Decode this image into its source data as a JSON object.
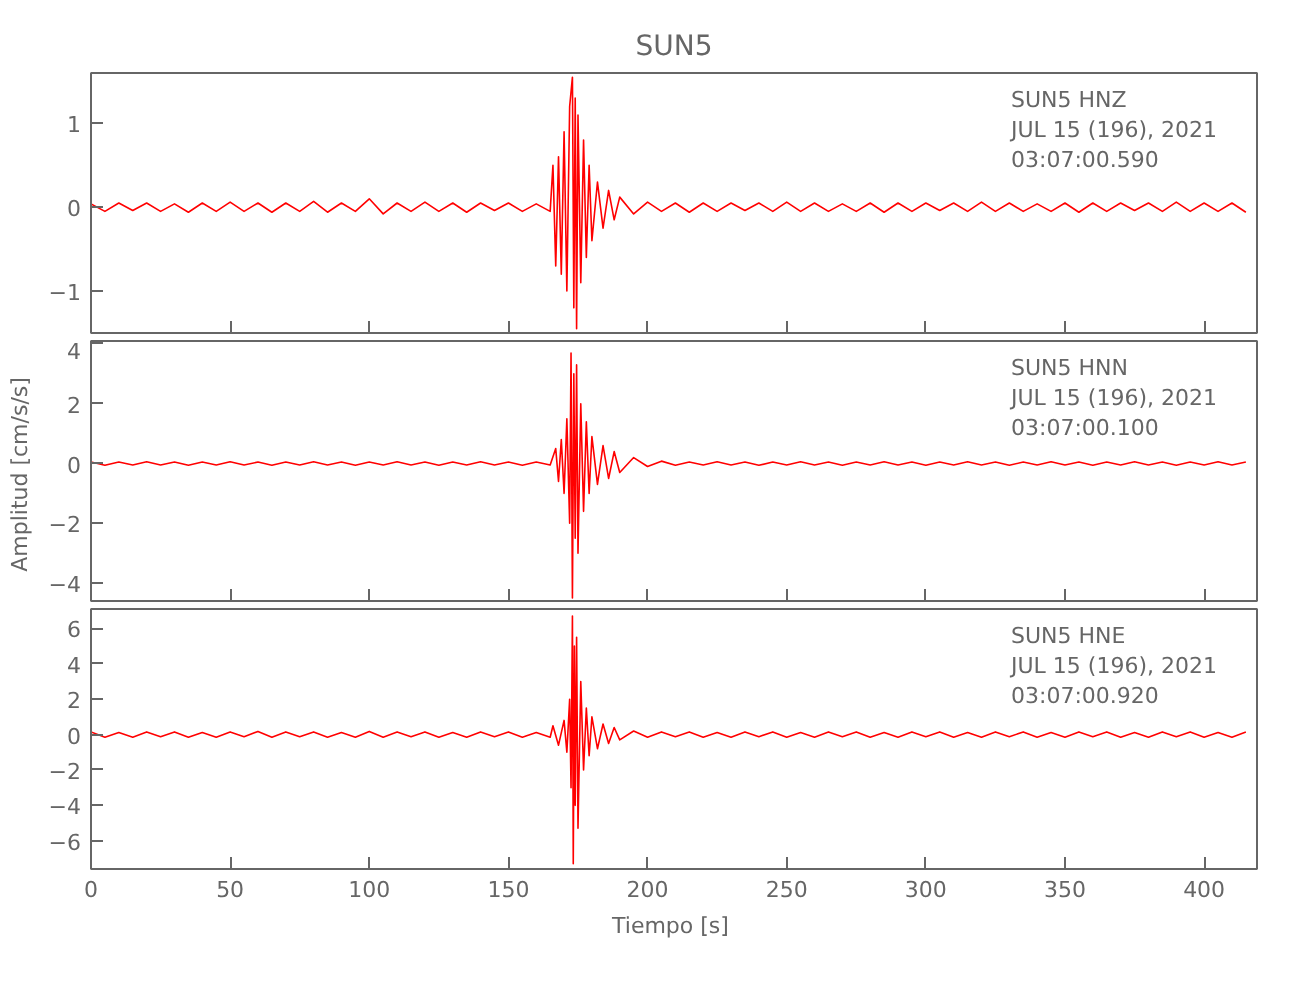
{
  "chart_data": [
    {
      "type": "line",
      "title": "SUN5",
      "annotations": [
        "SUN5   HNZ",
        "JUL 15 (196), 2021",
        "03:07:00.590"
      ],
      "xlim": [
        0,
        419
      ],
      "xticks": [
        0,
        50,
        100,
        150,
        200,
        250,
        300,
        350,
        400
      ],
      "ylim": [
        -1.5,
        1.6
      ],
      "yticks": [
        -1,
        0,
        1
      ],
      "tick_labels": "y",
      "series": [
        {
          "color": "#ff0000",
          "x": [
            0,
            5,
            10,
            15,
            20,
            25,
            30,
            35,
            40,
            45,
            50,
            55,
            60,
            65,
            70,
            75,
            80,
            85,
            90,
            95,
            100,
            105,
            110,
            115,
            120,
            125,
            130,
            135,
            140,
            145,
            150,
            155,
            160,
            165,
            166,
            167,
            168,
            169,
            170,
            171,
            172,
            173,
            173.5,
            174,
            174.5,
            175,
            176,
            177,
            178,
            179,
            180,
            182,
            184,
            186,
            188,
            190,
            195,
            200,
            205,
            210,
            215,
            220,
            225,
            230,
            235,
            240,
            245,
            250,
            255,
            260,
            265,
            270,
            275,
            280,
            285,
            290,
            295,
            300,
            305,
            310,
            315,
            320,
            325,
            330,
            335,
            340,
            345,
            350,
            355,
            360,
            365,
            370,
            375,
            380,
            385,
            390,
            395,
            400,
            405,
            410,
            415
          ],
          "values": [
            0.04,
            -0.05,
            0.05,
            -0.04,
            0.05,
            -0.05,
            0.04,
            -0.06,
            0.05,
            -0.05,
            0.06,
            -0.05,
            0.05,
            -0.06,
            0.05,
            -0.05,
            0.07,
            -0.06,
            0.05,
            -0.05,
            0.1,
            -0.08,
            0.05,
            -0.05,
            0.06,
            -0.05,
            0.05,
            -0.06,
            0.05,
            -0.04,
            0.05,
            -0.05,
            0.04,
            -0.05,
            0.5,
            -0.7,
            0.6,
            -0.8,
            0.9,
            -1.0,
            1.2,
            1.55,
            -1.2,
            1.3,
            -1.45,
            1.1,
            -0.9,
            0.8,
            -0.6,
            0.5,
            -0.4,
            0.3,
            -0.25,
            0.2,
            -0.15,
            0.12,
            -0.08,
            0.06,
            -0.05,
            0.05,
            -0.06,
            0.05,
            -0.05,
            0.05,
            -0.04,
            0.05,
            -0.05,
            0.06,
            -0.05,
            0.05,
            -0.05,
            0.04,
            -0.05,
            0.05,
            -0.06,
            0.05,
            -0.05,
            0.05,
            -0.04,
            0.05,
            -0.05,
            0.06,
            -0.05,
            0.05,
            -0.05,
            0.04,
            -0.05,
            0.05,
            -0.06,
            0.05,
            -0.05,
            0.05,
            -0.04,
            0.05,
            -0.05,
            0.06,
            -0.05,
            0.05,
            -0.05,
            0.05,
            -0.06
          ]
        }
      ]
    },
    {
      "type": "line",
      "ylabel": "Amplitud  [cm/s/s]",
      "annotations": [
        "SUN5   HNN",
        "JUL 15 (196), 2021",
        "03:07:00.100"
      ],
      "xlim": [
        0,
        419
      ],
      "xticks": [
        0,
        50,
        100,
        150,
        200,
        250,
        300,
        350,
        400
      ],
      "ylim": [
        -4.6,
        4.1
      ],
      "yticks": [
        -4,
        -2,
        0,
        2,
        4
      ],
      "tick_labels": "y",
      "series": [
        {
          "color": "#ff0000",
          "x": [
            0,
            5,
            10,
            15,
            20,
            25,
            30,
            35,
            40,
            45,
            50,
            55,
            60,
            65,
            70,
            75,
            80,
            85,
            90,
            95,
            100,
            105,
            110,
            115,
            120,
            125,
            130,
            135,
            140,
            145,
            150,
            155,
            160,
            165,
            167,
            168,
            169,
            170,
            171,
            172,
            172.5,
            173,
            173.5,
            174,
            174.5,
            175,
            176,
            177,
            178,
            179,
            180,
            182,
            184,
            186,
            188,
            190,
            195,
            200,
            205,
            210,
            215,
            220,
            225,
            230,
            235,
            240,
            245,
            250,
            255,
            260,
            265,
            270,
            275,
            280,
            285,
            290,
            295,
            300,
            305,
            310,
            315,
            320,
            325,
            330,
            335,
            340,
            345,
            350,
            355,
            360,
            365,
            370,
            375,
            380,
            385,
            390,
            395,
            400,
            405,
            410,
            415
          ],
          "values": [
            0.05,
            -0.06,
            0.05,
            -0.05,
            0.06,
            -0.05,
            0.05,
            -0.06,
            0.05,
            -0.05,
            0.06,
            -0.05,
            0.05,
            -0.06,
            0.05,
            -0.05,
            0.06,
            -0.05,
            0.05,
            -0.06,
            0.05,
            -0.05,
            0.06,
            -0.05,
            0.05,
            -0.06,
            0.05,
            -0.05,
            0.06,
            -0.05,
            0.05,
            -0.06,
            0.05,
            -0.05,
            0.5,
            -0.6,
            0.8,
            -1.0,
            1.5,
            -2.0,
            3.7,
            -4.5,
            3.0,
            -2.5,
            3.3,
            -3.0,
            2.0,
            -1.6,
            1.4,
            -1.0,
            0.9,
            -0.7,
            0.6,
            -0.5,
            0.4,
            -0.3,
            0.2,
            -0.1,
            0.08,
            -0.06,
            0.05,
            -0.05,
            0.06,
            -0.05,
            0.05,
            -0.06,
            0.05,
            -0.05,
            0.06,
            -0.05,
            0.05,
            -0.06,
            0.05,
            -0.05,
            0.06,
            -0.05,
            0.05,
            -0.06,
            0.05,
            -0.05,
            0.06,
            -0.05,
            0.05,
            -0.06,
            0.05,
            -0.05,
            0.06,
            -0.05,
            0.05,
            -0.06,
            0.05,
            -0.05,
            0.06,
            -0.05,
            0.05,
            -0.06,
            0.05,
            -0.05,
            0.06,
            -0.05,
            0.05
          ]
        }
      ]
    },
    {
      "type": "line",
      "xlabel": "Tiempo  [s]",
      "annotations": [
        "SUN5   HNE",
        "JUL 15 (196), 2021",
        "03:07:00.920"
      ],
      "xlim": [
        0,
        419
      ],
      "xticks": [
        0,
        50,
        100,
        150,
        200,
        250,
        300,
        350,
        400
      ],
      "ylim": [
        -7.6,
        7.1
      ],
      "yticks": [
        -6,
        -4,
        -2,
        0,
        2,
        4,
        6
      ],
      "series": [
        {
          "color": "#ff0000",
          "x": [
            0,
            5,
            10,
            15,
            20,
            25,
            30,
            35,
            40,
            45,
            50,
            55,
            60,
            65,
            70,
            75,
            80,
            85,
            90,
            95,
            100,
            105,
            110,
            115,
            120,
            125,
            130,
            135,
            140,
            145,
            150,
            155,
            160,
            165,
            166,
            168,
            170,
            171,
            172,
            172.5,
            173,
            173.3,
            173.7,
            174,
            174.5,
            175,
            176,
            177,
            178,
            179,
            180,
            182,
            184,
            186,
            188,
            190,
            195,
            200,
            205,
            210,
            215,
            220,
            225,
            230,
            235,
            240,
            245,
            250,
            255,
            260,
            265,
            270,
            275,
            280,
            285,
            290,
            295,
            300,
            305,
            310,
            315,
            320,
            325,
            330,
            335,
            340,
            345,
            350,
            355,
            360,
            365,
            370,
            375,
            380,
            385,
            390,
            395,
            400,
            405,
            410,
            415
          ],
          "values": [
            0.15,
            -0.15,
            0.12,
            -0.15,
            0.15,
            -0.12,
            0.15,
            -0.15,
            0.12,
            -0.15,
            0.15,
            -0.12,
            0.18,
            -0.15,
            0.15,
            -0.12,
            0.15,
            -0.15,
            0.12,
            -0.15,
            0.18,
            -0.15,
            0.15,
            -0.12,
            0.15,
            -0.15,
            0.12,
            -0.15,
            0.15,
            -0.12,
            0.15,
            -0.15,
            0.12,
            -0.15,
            0.5,
            -0.6,
            0.8,
            -1.0,
            2.0,
            -3.0,
            6.7,
            -7.3,
            5.0,
            -4.0,
            5.5,
            -5.3,
            3.0,
            -2.0,
            1.5,
            -1.2,
            1.0,
            -0.8,
            0.6,
            -0.5,
            0.4,
            -0.3,
            0.2,
            -0.15,
            0.15,
            -0.12,
            0.15,
            -0.15,
            0.12,
            -0.15,
            0.15,
            -0.12,
            0.15,
            -0.15,
            0.12,
            -0.15,
            0.15,
            -0.12,
            0.15,
            -0.15,
            0.12,
            -0.15,
            0.15,
            -0.12,
            0.15,
            -0.15,
            0.12,
            -0.15,
            0.15,
            -0.12,
            0.15,
            -0.15,
            0.12,
            -0.15,
            0.15,
            -0.12,
            0.15,
            -0.15,
            0.12,
            -0.15,
            0.15,
            -0.12,
            0.15,
            -0.15,
            0.12,
            -0.15,
            0.15
          ]
        }
      ]
    }
  ]
}
